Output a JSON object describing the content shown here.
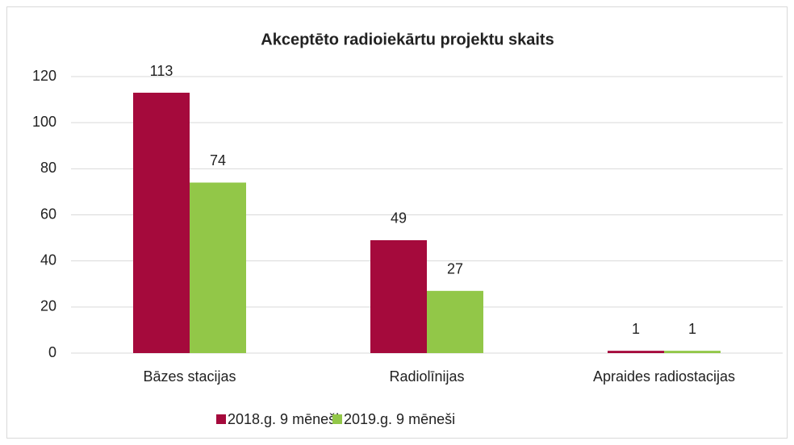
{
  "chart_data": {
    "type": "bar",
    "title": "Akceptēto radioiekārtu projektu skaits",
    "categories": [
      "Bāzes stacijas",
      "Radiolīnijas",
      "Apraides radiostacijas"
    ],
    "series": [
      {
        "name": "2018.g. 9 mēneši",
        "color": "#a50a3c",
        "values": [
          113,
          49,
          1
        ]
      },
      {
        "name": "2019.g. 9 mēneši",
        "color": "#92c748",
        "values": [
          74,
          27,
          1
        ]
      }
    ],
    "ylim": [
      0,
      120
    ],
    "yticks": [
      0,
      20,
      40,
      60,
      80,
      100,
      120
    ],
    "grid": true,
    "legend": "bottom"
  }
}
